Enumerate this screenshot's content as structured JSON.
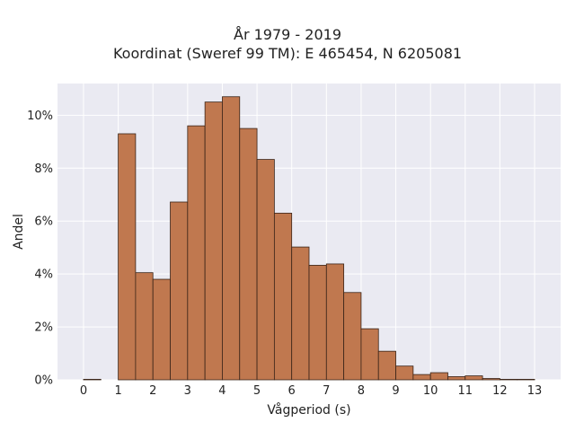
{
  "chart_data": {
    "type": "bar",
    "title": "År 1979 - 2019",
    "subtitle": "Koordinat (Sweref 99 TM): E 465454, N 6205081",
    "xlabel": "Vågperiod (s)",
    "ylabel": "Andel",
    "x_ticks": [
      0,
      1,
      2,
      3,
      4,
      5,
      6,
      7,
      8,
      9,
      10,
      11,
      12,
      13
    ],
    "y_ticks": [
      0,
      2,
      4,
      6,
      8,
      10
    ],
    "y_tick_suffix": "%",
    "xlim": [
      -0.75,
      13.75
    ],
    "ylim": [
      0,
      11.2
    ],
    "bin_width": 0.5,
    "bins": [
      {
        "x0": 0.0,
        "value": 0.02
      },
      {
        "x0": 0.5,
        "value": 0.0
      },
      {
        "x0": 1.0,
        "value": 9.3
      },
      {
        "x0": 1.5,
        "value": 4.05
      },
      {
        "x0": 2.0,
        "value": 3.8
      },
      {
        "x0": 2.5,
        "value": 6.72
      },
      {
        "x0": 3.0,
        "value": 9.6
      },
      {
        "x0": 3.5,
        "value": 10.5
      },
      {
        "x0": 4.0,
        "value": 10.7
      },
      {
        "x0": 4.5,
        "value": 9.5
      },
      {
        "x0": 5.0,
        "value": 8.33
      },
      {
        "x0": 5.5,
        "value": 6.3
      },
      {
        "x0": 6.0,
        "value": 5.02
      },
      {
        "x0": 6.5,
        "value": 4.33
      },
      {
        "x0": 7.0,
        "value": 4.38
      },
      {
        "x0": 7.5,
        "value": 3.3
      },
      {
        "x0": 8.0,
        "value": 1.93
      },
      {
        "x0": 8.5,
        "value": 1.08
      },
      {
        "x0": 9.0,
        "value": 0.52
      },
      {
        "x0": 9.5,
        "value": 0.2
      },
      {
        "x0": 10.0,
        "value": 0.27
      },
      {
        "x0": 10.5,
        "value": 0.12
      },
      {
        "x0": 11.0,
        "value": 0.15
      },
      {
        "x0": 11.5,
        "value": 0.05
      },
      {
        "x0": 12.0,
        "value": 0.02
      },
      {
        "x0": 12.5,
        "value": 0.02
      }
    ],
    "grid": true,
    "colors": {
      "bar_fill": "#c0784f",
      "bar_edge": "#3a2418",
      "plot_background": "#eaeaf2",
      "grid": "#ffffff"
    }
  }
}
